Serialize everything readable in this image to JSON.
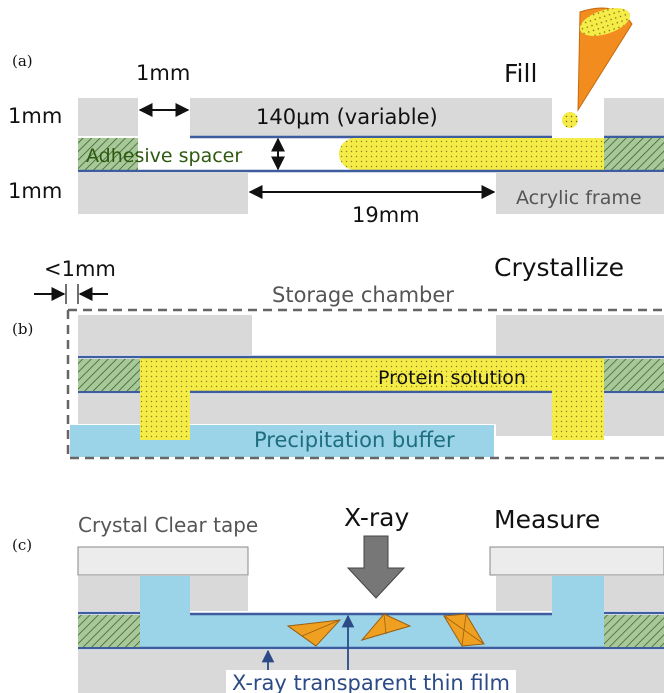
{
  "panels": {
    "a": {
      "letter": "(a)",
      "step": "Fill",
      "dim_gap": "1mm",
      "dim_top_plate": "1mm",
      "dim_bottom_plate": "1mm",
      "dim_channel": "140μm (variable)",
      "dim_length": "19mm",
      "label_spacer": "Adhesive spacer",
      "label_frame": "Acrylic frame"
    },
    "b": {
      "letter": "(b)",
      "step": "Crystallize",
      "dim_clearance": "<1mm",
      "label_chamber": "Storage chamber",
      "label_protein": "Protein solution",
      "label_buffer": "Precipitation buffer"
    },
    "c": {
      "letter": "(c)",
      "step": "Measure",
      "label_tape": "Crystal Clear tape",
      "label_beam": "X-ray",
      "label_film": "X-ray transparent thin film"
    }
  },
  "colors": {
    "frame": "#d9d9d9",
    "film": "#3e5d9e",
    "spacer": "#a8c89a",
    "protein": "#f5ec48",
    "buffer": "#9bd3e8",
    "crystal": "#f0a020",
    "cone": "#f28c1e",
    "arrow": "#777777",
    "tape": "#ececec"
  },
  "icons": [
    "pipette-cone-icon",
    "xray-arrow-icon",
    "crystal-icon"
  ]
}
